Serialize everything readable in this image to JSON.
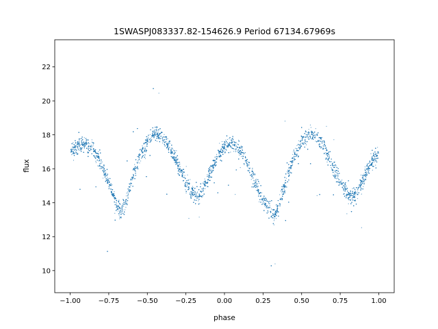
{
  "chart_data": {
    "type": "scatter",
    "title": "1SWASPJ083337.82-154626.9 Period 67134.67969s",
    "xlabel": "phase",
    "ylabel": "flux",
    "xlim": [
      -1.1,
      1.1
    ],
    "ylim": [
      8.7,
      23.6
    ],
    "xticks": [
      -1.0,
      -0.75,
      -0.5,
      -0.25,
      0.0,
      0.25,
      0.5,
      0.75,
      1.0
    ],
    "xtick_labels": [
      "−1.00",
      "−0.75",
      "−0.50",
      "−0.25",
      "0.00",
      "0.25",
      "0.50",
      "0.75",
      "1.00"
    ],
    "yticks": [
      10,
      12,
      14,
      16,
      18,
      20,
      22
    ],
    "ytick_labels": [
      "10",
      "12",
      "14",
      "16",
      "18",
      "20",
      "22"
    ],
    "grid": false,
    "legend": "none",
    "point_color": "#1f77b4",
    "series": [
      {
        "x": [
          -1.0,
          -0.95,
          -0.9,
          -0.85,
          -0.8,
          -0.75,
          -0.7,
          -0.67,
          -0.65,
          -0.6,
          -0.55,
          -0.5,
          -0.45,
          -0.4,
          -0.35,
          -0.3,
          -0.25,
          -0.2,
          -0.17,
          -0.15,
          -0.1,
          -0.05,
          0.0,
          0.05,
          0.1,
          0.15,
          0.2,
          0.25,
          0.3,
          0.33,
          0.35,
          0.4,
          0.45,
          0.5,
          0.55,
          0.6,
          0.65,
          0.7,
          0.75,
          0.8,
          0.83,
          0.85,
          0.9,
          0.95,
          1.0
        ],
        "y": [
          17.0,
          17.4,
          17.5,
          17.1,
          16.3,
          15.2,
          13.9,
          13.4,
          13.8,
          15.3,
          16.7,
          17.6,
          18.1,
          17.9,
          17.2,
          16.2,
          15.2,
          14.5,
          14.4,
          14.6,
          15.6,
          16.7,
          17.2,
          17.5,
          17.1,
          16.3,
          15.2,
          14.2,
          13.5,
          13.3,
          13.8,
          15.3,
          16.7,
          17.6,
          18.1,
          17.9,
          17.2,
          16.2,
          15.2,
          14.5,
          14.3,
          14.5,
          15.4,
          16.3,
          17.0
        ]
      }
    ]
  }
}
